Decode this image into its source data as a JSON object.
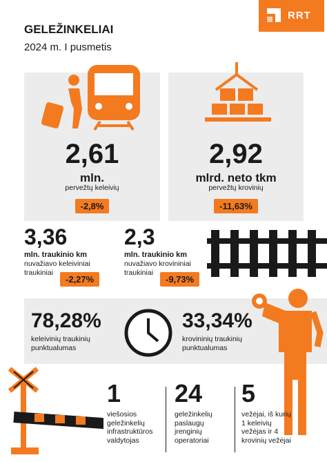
{
  "header": {
    "title": "GELEŽINKELIAI",
    "subtitle": "2024 m. I pusmetis",
    "logo": "RRT"
  },
  "passengers": {
    "value": "2,61",
    "unit": "mln.",
    "description": "pervežtų keleivių",
    "change": "-2,8%"
  },
  "freight": {
    "value": "2,92",
    "unit": "mlrd. neto tkm",
    "description": "pervežtų krovinių",
    "change": "-11,63%"
  },
  "passenger_train_km": {
    "value": "3,36",
    "unit": "mln. traukinio km",
    "description": "nuvažiavo keleiviniai traukiniai",
    "change": "-2,27%"
  },
  "freight_train_km": {
    "value": "2,3",
    "unit": "mln. traukinio km",
    "description": "nuvažiavo krovininiai traukiniai",
    "change": "-9,73%"
  },
  "passenger_punctuality": {
    "value": "78,28%",
    "description": "keleivinių traukinių punktualumas"
  },
  "freight_punctuality": {
    "value": "33,34%",
    "description": "krovininių traukinių punktualumas"
  },
  "market": [
    {
      "value": "1",
      "description": "viešosios geležinkelių infrastruktūros valdytojas"
    },
    {
      "value": "24",
      "description": "geležinkelių paslaugų įrenginių operatoriai"
    },
    {
      "value": "5",
      "description": "vežėjai, iš kurių 1 keleivių vežėjas ir 4 krovinių vežėjai"
    }
  ]
}
